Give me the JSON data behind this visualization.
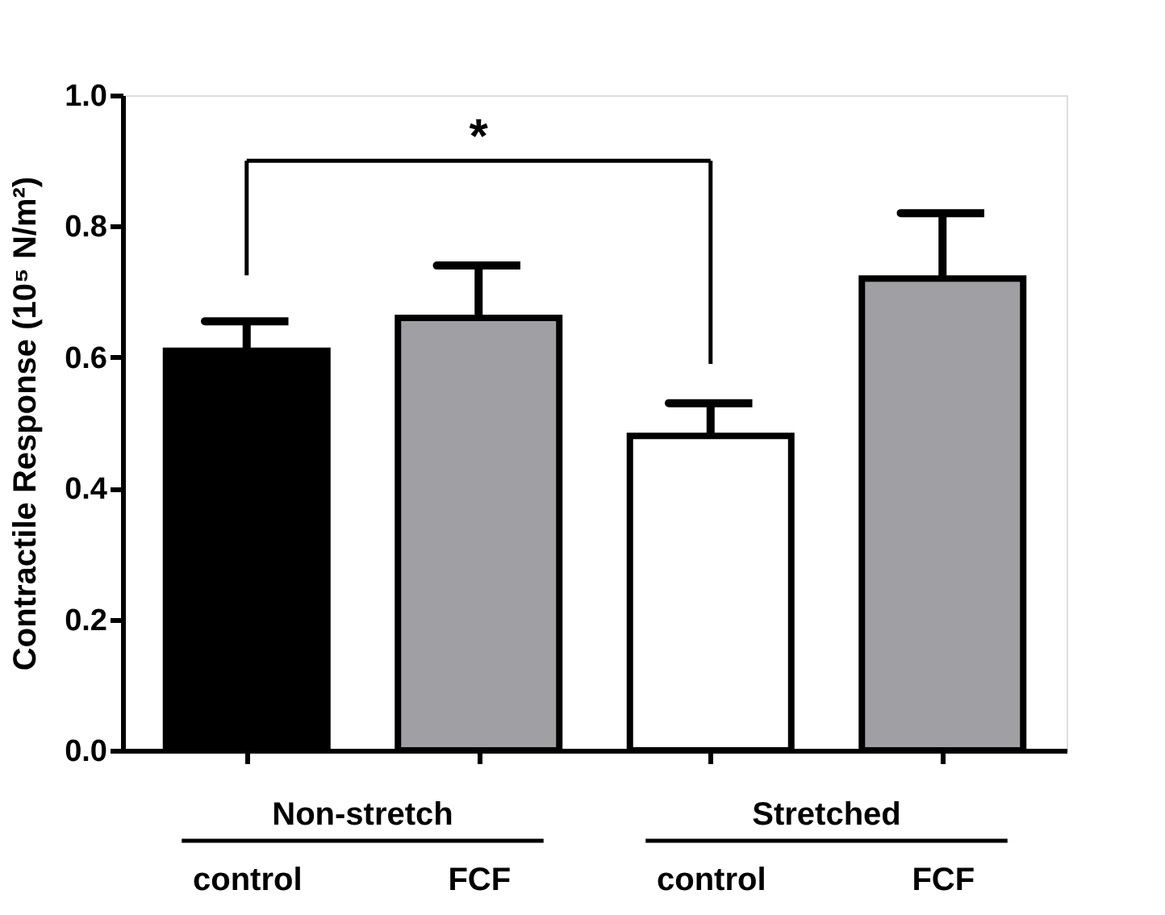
{
  "chart_data": {
    "type": "bar",
    "ylabel": "Contractile Response (10⁵ N/m²)",
    "categories": [
      "control",
      "FCF",
      "control",
      "FCF"
    ],
    "values": [
      0.61,
      0.66,
      0.48,
      0.72
    ],
    "errors": [
      [
        0.61,
        0.655
      ],
      [
        0.66,
        0.74
      ],
      [
        0.48,
        0.53
      ],
      [
        0.72,
        0.82
      ]
    ],
    "colors": [
      "#000000",
      "#a0a0a4",
      "#ffffff",
      "#a0a0a4"
    ],
    "ylim": [
      0,
      1.0
    ],
    "yticks": [
      {
        "value": 0,
        "label": "0.0"
      },
      {
        "value": 0.2,
        "label": "0.2"
      },
      {
        "value": 0.4,
        "label": "0.4"
      },
      {
        "value": 0.6,
        "label": "0.6"
      },
      {
        "value": 0.8,
        "label": "0.8"
      },
      {
        "value": 1.0,
        "label": "1.0"
      }
    ],
    "annotations": [
      "*",
      "Non-stretch",
      "Stretched"
    ],
    "grid": false
  }
}
